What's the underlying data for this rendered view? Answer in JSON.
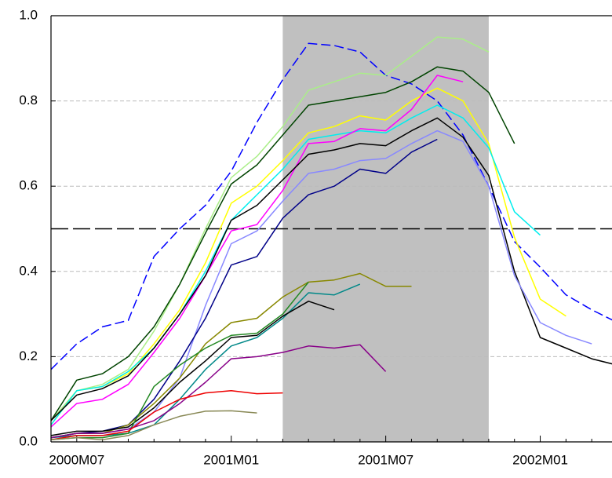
{
  "chart_data": {
    "type": "line",
    "categories": [
      null,
      "2000M07",
      null,
      null,
      null,
      null,
      null,
      "2001M01",
      null,
      null,
      null,
      null,
      null,
      "2001M07",
      null,
      null,
      null,
      null,
      null,
      "2002M01",
      null,
      null,
      null
    ],
    "xlim": [
      0,
      22
    ],
    "ylim": [
      0,
      1
    ],
    "yticks": [
      {
        "value": 0,
        "label": "0.0"
      },
      0.2,
      0.4,
      0.6,
      0.8,
      {
        "value": 1,
        "label": "1.0"
      }
    ],
    "grid": true,
    "shade": {
      "from": 9,
      "to": 17,
      "color": "#c0c0c0"
    },
    "hline": 0.5,
    "series": [
      {
        "color": "#0000ff",
        "dashed": true,
        "values": [
          0.17,
          0.23,
          0.27,
          0.285,
          0.435,
          0.5,
          0.555,
          0.635,
          0.75,
          0.85,
          0.935,
          0.93,
          0.915,
          0.86,
          0.84,
          0.8,
          0.72,
          0.6,
          0.47,
          0.41,
          0.345,
          0.31,
          0.28
        ]
      },
      {
        "color": "#aaee88",
        "values": [
          0.05,
          0.12,
          0.135,
          0.17,
          0.26,
          0.37,
          0.5,
          0.62,
          0.67,
          0.74,
          0.825,
          0.845,
          0.865,
          0.86,
          0.905,
          0.95,
          0.945,
          0.915,
          null,
          null,
          null,
          null,
          null
        ]
      },
      {
        "color": "#004400",
        "values": [
          0.05,
          0.145,
          0.16,
          0.2,
          0.27,
          0.37,
          0.49,
          0.605,
          0.65,
          0.72,
          0.79,
          0.8,
          0.81,
          0.82,
          0.845,
          0.88,
          0.87,
          0.82,
          0.7,
          null,
          null,
          null,
          null
        ]
      },
      {
        "color": "#ffff00",
        "values": [
          0.04,
          0.12,
          0.13,
          0.16,
          0.23,
          0.31,
          0.42,
          0.56,
          0.6,
          0.66,
          0.725,
          0.74,
          0.765,
          0.755,
          0.8,
          0.83,
          0.8,
          0.7,
          0.48,
          0.335,
          0.295,
          null,
          null
        ]
      },
      {
        "color": "#00eeee",
        "values": [
          0.04,
          0.12,
          0.13,
          0.165,
          0.22,
          0.3,
          0.4,
          0.52,
          0.58,
          0.64,
          0.71,
          0.72,
          0.73,
          0.725,
          0.76,
          0.79,
          0.76,
          0.69,
          0.54,
          0.485,
          null,
          null,
          null
        ]
      },
      {
        "color": "#ff00ff",
        "values": [
          0.035,
          0.09,
          0.1,
          0.135,
          0.21,
          0.29,
          0.39,
          0.495,
          0.51,
          0.59,
          0.7,
          0.705,
          0.735,
          0.73,
          0.78,
          0.86,
          0.845,
          null,
          null,
          null,
          null,
          null,
          null
        ]
      },
      {
        "color": "#000000",
        "values": [
          0.05,
          0.11,
          0.125,
          0.155,
          0.22,
          0.3,
          0.39,
          0.52,
          0.555,
          0.615,
          0.675,
          0.685,
          0.7,
          0.695,
          0.73,
          0.76,
          0.715,
          0.625,
          0.4,
          0.245,
          0.22,
          0.195,
          0.18
        ]
      },
      {
        "color": "#8888ff",
        "values": [
          0.01,
          0.02,
          0.02,
          0.03,
          0.07,
          0.15,
          0.32,
          0.465,
          0.495,
          0.565,
          0.63,
          0.64,
          0.66,
          0.665,
          0.7,
          0.73,
          0.705,
          0.6,
          0.39,
          0.28,
          0.25,
          0.23,
          null
        ]
      },
      {
        "color": "#000088",
        "values": [
          0.01,
          0.02,
          0.025,
          0.04,
          0.1,
          0.19,
          0.29,
          0.415,
          0.435,
          0.525,
          0.58,
          0.6,
          0.64,
          0.63,
          0.68,
          0.71,
          null,
          null,
          null,
          null,
          null,
          null,
          null
        ]
      },
      {
        "color": "#888800",
        "values": [
          0.01,
          0.02,
          0.02,
          0.04,
          0.09,
          0.15,
          0.23,
          0.28,
          0.29,
          0.34,
          0.375,
          0.38,
          0.395,
          0.365,
          0.365,
          null,
          null,
          null,
          null,
          null,
          null,
          null,
          null
        ]
      },
      {
        "color": "#008888",
        "values": [
          0.01,
          0.015,
          0.015,
          0.02,
          0.04,
          0.1,
          0.17,
          0.225,
          0.245,
          0.29,
          0.35,
          0.345,
          0.37,
          null,
          null,
          null,
          null,
          null,
          null,
          null,
          null,
          null,
          null
        ]
      },
      {
        "color": "#000000",
        "values": [
          0.015,
          0.025,
          0.025,
          0.035,
          0.08,
          0.14,
          0.19,
          0.245,
          0.25,
          0.295,
          0.33,
          0.31,
          null,
          null,
          null,
          null,
          null,
          null,
          null,
          null,
          null,
          null,
          null
        ]
      },
      {
        "color": "#228822",
        "values": [
          0.005,
          0.01,
          0.01,
          0.02,
          0.13,
          0.18,
          0.22,
          0.25,
          0.255,
          0.3,
          0.375,
          null,
          null,
          null,
          null,
          null,
          null,
          null,
          null,
          null,
          null,
          null,
          null
        ]
      },
      {
        "color": "#880088",
        "values": [
          0.01,
          0.02,
          0.02,
          0.03,
          0.05,
          0.09,
          0.14,
          0.195,
          0.2,
          0.21,
          0.225,
          0.22,
          0.228,
          0.165,
          null,
          null,
          null,
          null,
          null,
          null,
          null,
          null,
          null
        ]
      },
      {
        "color": "#ee0000",
        "values": [
          0.005,
          0.015,
          0.015,
          0.025,
          0.07,
          0.1,
          0.115,
          0.12,
          0.113,
          0.115,
          null,
          null,
          null,
          null,
          null,
          null,
          null,
          null,
          null,
          null,
          null,
          null,
          null
        ]
      },
      {
        "color": "#888855",
        "values": [
          0.005,
          0.01,
          0.005,
          0.015,
          0.04,
          0.06,
          0.072,
          0.073,
          0.068,
          null,
          null,
          null,
          null,
          null,
          null,
          null,
          null,
          null,
          null,
          null,
          null,
          null,
          null
        ]
      }
    ]
  }
}
